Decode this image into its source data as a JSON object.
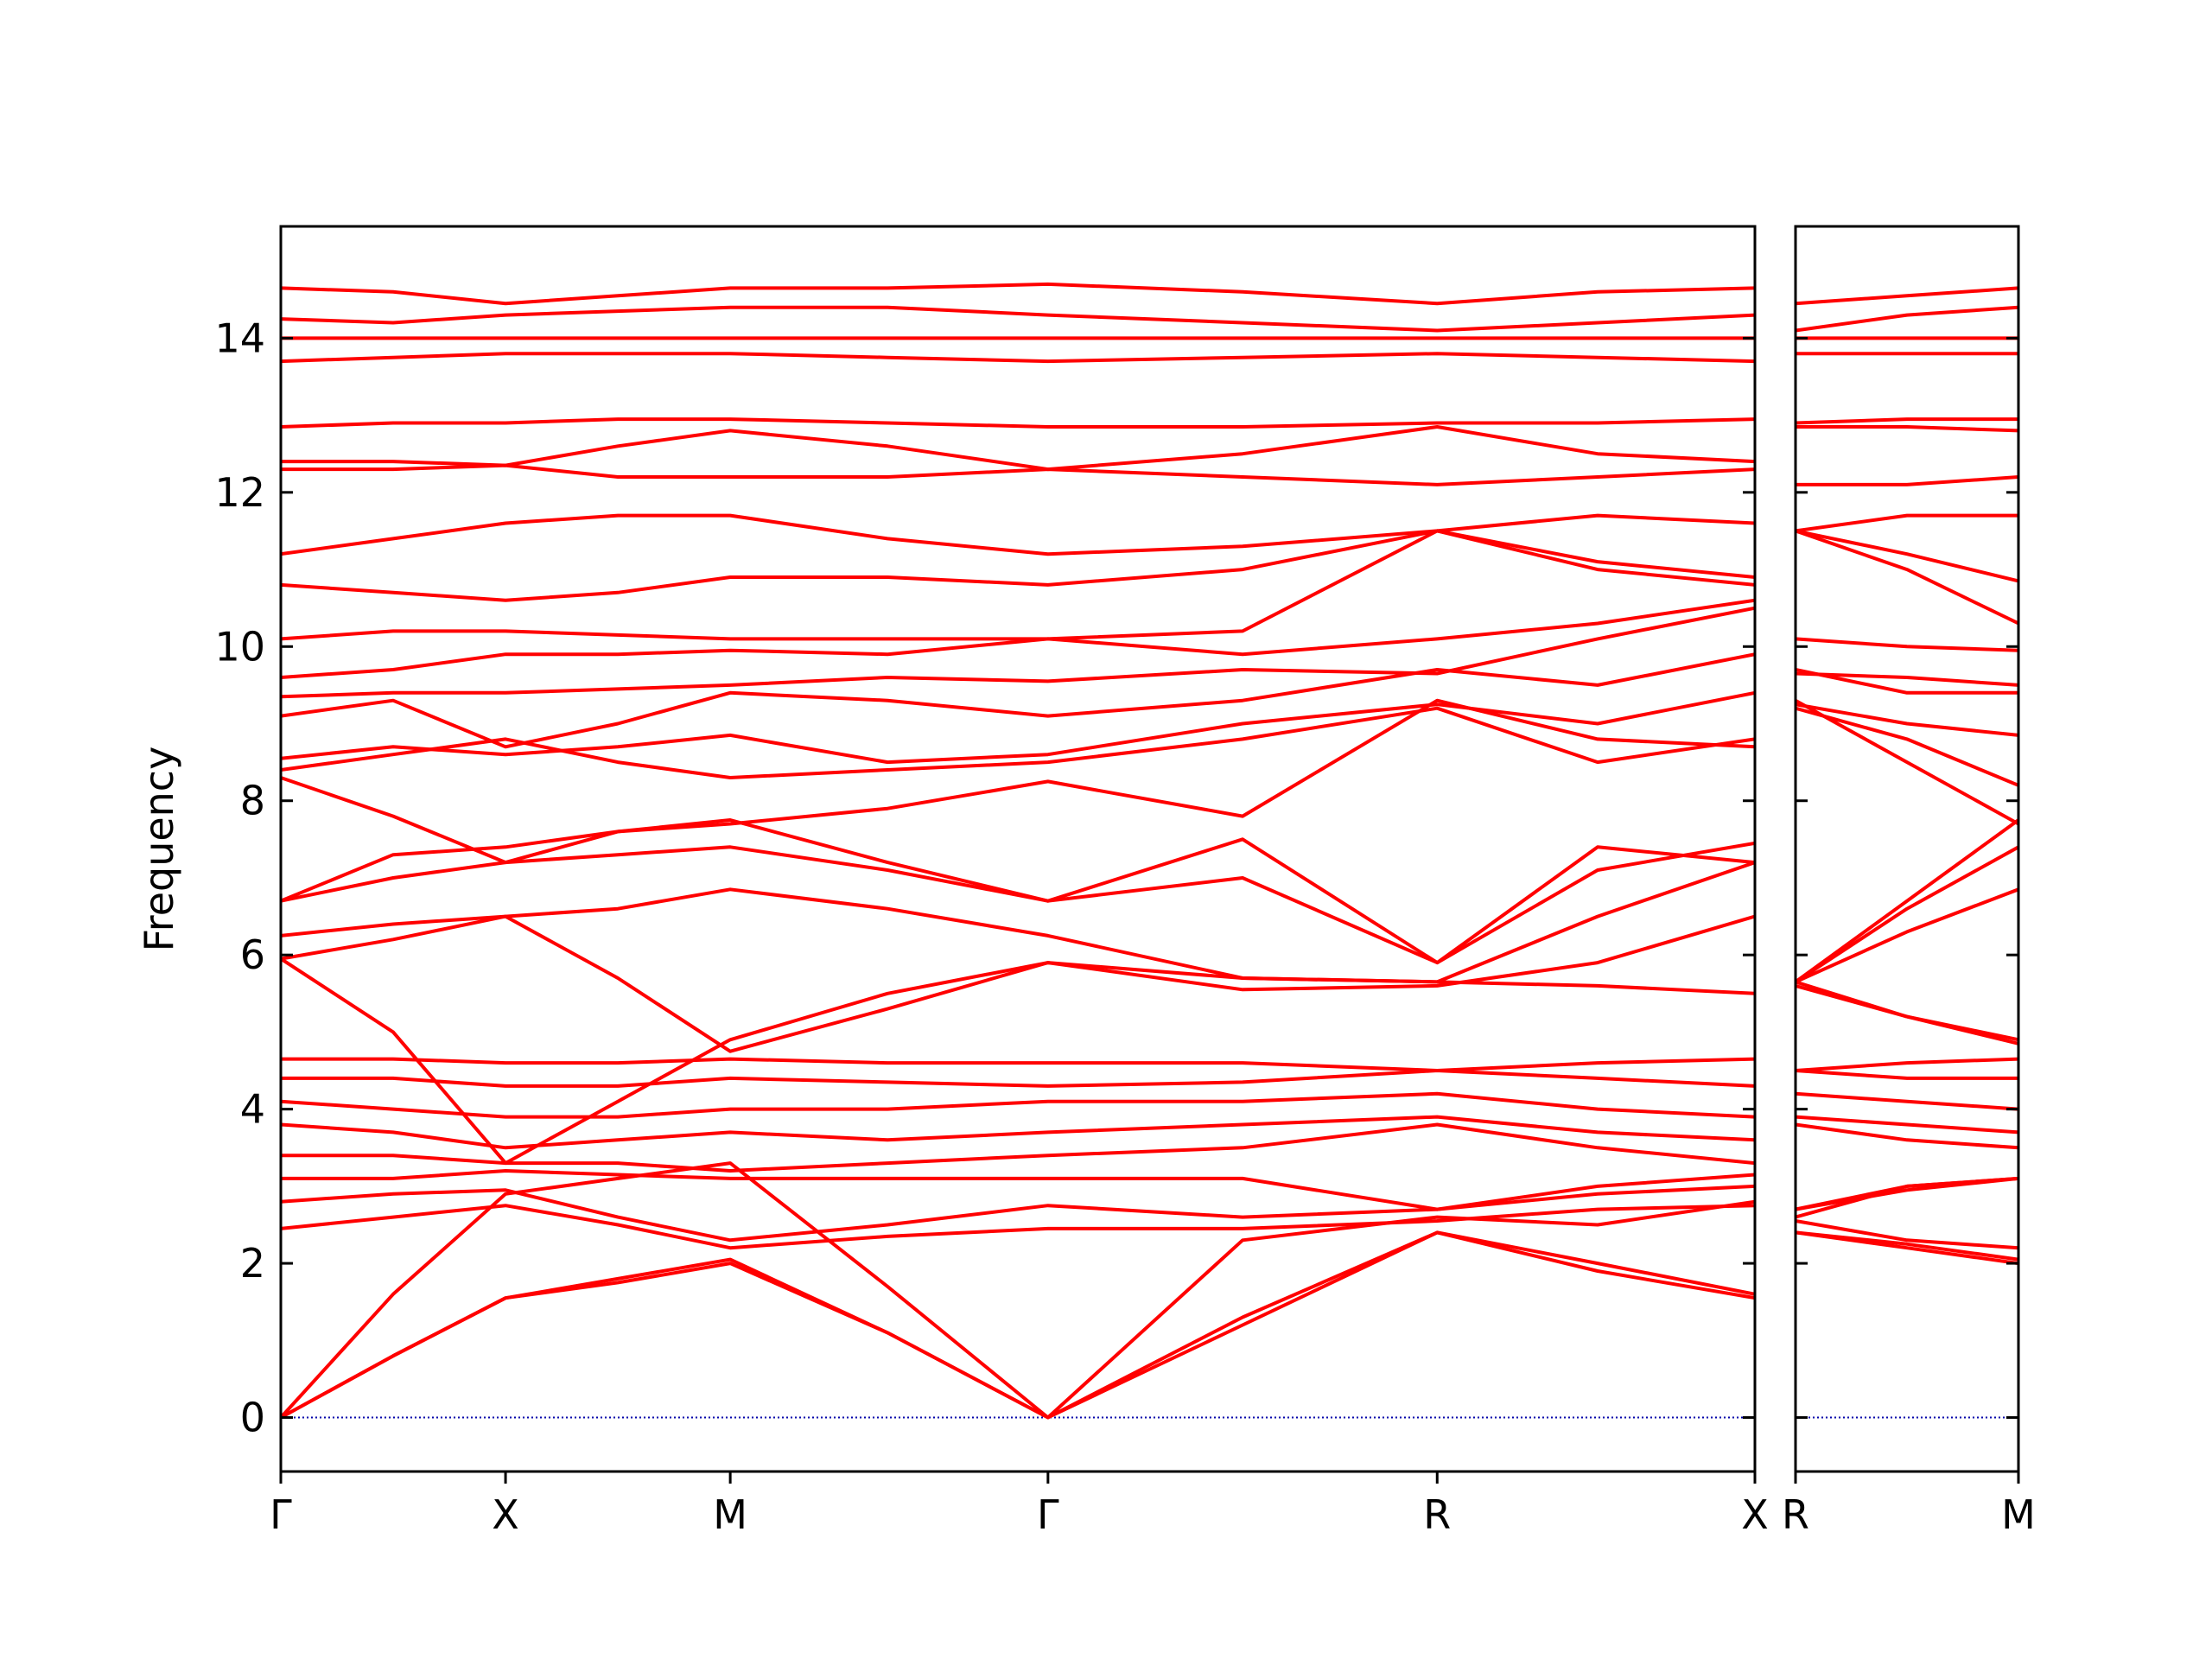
{
  "chart_data": [
    {
      "type": "line",
      "ylabel": "Frequency",
      "color": "#ff0000",
      "hline": 0,
      "hline_color": "#0000aa",
      "xlim": [
        0,
        3.28
      ],
      "ylim": [
        -0.7,
        15.45
      ],
      "xticks": [
        {
          "value": 0,
          "label": "Γ"
        },
        {
          "value": 0.5,
          "label": "X"
        },
        {
          "value": 1.0,
          "label": "M"
        },
        {
          "value": 1.707,
          "label": "Γ"
        },
        {
          "value": 2.573,
          "label": "R"
        },
        {
          "value": 3.28,
          "label": "X"
        }
      ],
      "yticks": [
        0,
        2,
        4,
        6,
        8,
        10,
        12,
        14
      ],
      "ytick_labels": true,
      "x": [
        0,
        0.25,
        0.5,
        0.75,
        1.0,
        1.35,
        1.707,
        2.14,
        2.573,
        2.93,
        3.28
      ],
      "series": [
        {
          "values": [
            0,
            0.8,
            1.55,
            1.75,
            2.0,
            1.1,
            0,
            1.2,
            2.4,
            1.9,
            1.55
          ]
        },
        {
          "values": [
            0,
            0.8,
            1.55,
            1.8,
            2.05,
            1.1,
            0,
            1.3,
            2.4,
            2.0,
            1.6
          ]
        },
        {
          "values": [
            0,
            1.6,
            2.9,
            3.1,
            3.3,
            1.7,
            0,
            2.3,
            2.6,
            2.5,
            2.8
          ]
        },
        {
          "values": [
            2.45,
            2.6,
            2.75,
            2.5,
            2.2,
            2.35,
            2.45,
            2.45,
            2.55,
            2.7,
            2.75
          ]
        },
        {
          "values": [
            2.8,
            2.9,
            2.95,
            2.6,
            2.3,
            2.5,
            2.75,
            2.6,
            2.7,
            2.9,
            3.0
          ]
        },
        {
          "values": [
            3.1,
            3.1,
            3.2,
            3.15,
            3.1,
            3.1,
            3.1,
            3.1,
            2.7,
            3.0,
            3.15
          ]
        },
        {
          "values": [
            3.4,
            3.4,
            3.3,
            3.3,
            3.2,
            3.3,
            3.4,
            3.5,
            3.8,
            3.5,
            3.3
          ]
        },
        {
          "values": [
            3.8,
            3.7,
            3.5,
            3.6,
            3.7,
            3.6,
            3.7,
            3.8,
            3.9,
            3.7,
            3.6
          ]
        },
        {
          "values": [
            4.1,
            4.0,
            3.9,
            3.9,
            4.0,
            4.0,
            4.1,
            4.1,
            4.2,
            4.0,
            3.9
          ]
        },
        {
          "values": [
            4.4,
            4.4,
            4.3,
            4.3,
            4.4,
            4.35,
            4.3,
            4.35,
            4.5,
            4.4,
            4.3
          ]
        },
        {
          "values": [
            4.65,
            4.65,
            4.6,
            4.6,
            4.65,
            4.6,
            4.6,
            4.6,
            4.5,
            4.6,
            4.65
          ]
        },
        {
          "values": [
            5.95,
            5.0,
            3.3,
            4.1,
            4.9,
            5.5,
            5.9,
            5.7,
            5.65,
            5.6,
            5.5
          ]
        },
        {
          "values": [
            5.95,
            6.2,
            6.5,
            5.7,
            4.75,
            5.3,
            5.9,
            5.55,
            5.6,
            5.9,
            6.5
          ]
        },
        {
          "values": [
            6.25,
            6.4,
            6.5,
            6.6,
            6.85,
            6.6,
            6.25,
            5.7,
            5.65,
            6.5,
            7.2
          ]
        },
        {
          "values": [
            6.7,
            7.0,
            7.2,
            7.3,
            7.4,
            7.1,
            6.7,
            7.0,
            5.9,
            7.4,
            7.2
          ]
        },
        {
          "values": [
            6.7,
            7.3,
            7.4,
            7.6,
            7.75,
            7.2,
            6.7,
            7.5,
            5.9,
            7.1,
            7.45
          ]
        },
        {
          "values": [
            8.3,
            7.8,
            7.2,
            7.6,
            7.7,
            7.9,
            8.25,
            7.8,
            9.3,
            8.8,
            8.7
          ]
        },
        {
          "values": [
            8.4,
            8.6,
            8.8,
            8.5,
            8.3,
            8.4,
            8.5,
            8.8,
            9.2,
            8.5,
            8.8
          ]
        },
        {
          "values": [
            8.55,
            8.7,
            8.6,
            8.7,
            8.85,
            8.5,
            8.6,
            9.0,
            9.25,
            9.0,
            9.4
          ]
        },
        {
          "values": [
            9.1,
            9.3,
            8.7,
            9.0,
            9.4,
            9.3,
            9.1,
            9.3,
            9.7,
            9.5,
            9.9
          ]
        },
        {
          "values": [
            9.35,
            9.4,
            9.4,
            9.45,
            9.5,
            9.6,
            9.55,
            9.7,
            9.65,
            10.1,
            10.5
          ]
        },
        {
          "values": [
            9.6,
            9.7,
            9.9,
            9.9,
            9.95,
            9.9,
            10.1,
            9.9,
            10.1,
            10.3,
            10.6
          ]
        },
        {
          "values": [
            10.1,
            10.2,
            10.2,
            10.15,
            10.1,
            10.1,
            10.1,
            10.2,
            11.5,
            11.0,
            10.8
          ]
        },
        {
          "values": [
            10.8,
            10.7,
            10.6,
            10.7,
            10.9,
            10.9,
            10.8,
            11.0,
            11.5,
            11.1,
            10.9
          ]
        },
        {
          "values": [
            11.2,
            11.4,
            11.6,
            11.7,
            11.7,
            11.4,
            11.2,
            11.3,
            11.5,
            11.7,
            11.6
          ]
        },
        {
          "values": [
            12.3,
            12.3,
            12.35,
            12.2,
            12.2,
            12.2,
            12.3,
            12.2,
            12.1,
            12.2,
            12.3
          ]
        },
        {
          "values": [
            12.4,
            12.4,
            12.35,
            12.6,
            12.8,
            12.6,
            12.3,
            12.5,
            12.85,
            12.5,
            12.4
          ]
        },
        {
          "values": [
            12.85,
            12.9,
            12.9,
            12.95,
            12.95,
            12.9,
            12.85,
            12.85,
            12.9,
            12.9,
            12.95
          ]
        },
        {
          "values": [
            13.7,
            13.75,
            13.8,
            13.8,
            13.8,
            13.75,
            13.7,
            13.75,
            13.8,
            13.75,
            13.7
          ]
        },
        {
          "values": [
            14.0,
            14.0,
            14.0,
            14.0,
            14.0,
            14.0,
            14.0,
            14.0,
            14.0,
            14.0,
            14.0
          ]
        },
        {
          "values": [
            14.25,
            14.2,
            14.3,
            14.35,
            14.4,
            14.4,
            14.3,
            14.2,
            14.1,
            14.2,
            14.3
          ]
        },
        {
          "values": [
            14.65,
            14.6,
            14.45,
            14.55,
            14.65,
            14.65,
            14.7,
            14.6,
            14.45,
            14.6,
            14.65
          ]
        }
      ]
    },
    {
      "type": "line",
      "color": "#ff0000",
      "hline": 0,
      "hline_color": "#0000aa",
      "xlim": [
        0,
        0.5
      ],
      "ylim": [
        -0.7,
        15.45
      ],
      "xticks": [
        {
          "value": 0,
          "label": "R"
        },
        {
          "value": 0.5,
          "label": "M"
        }
      ],
      "yticks": [
        0,
        2,
        4,
        6,
        8,
        10,
        12,
        14
      ],
      "ytick_labels": false,
      "x": [
        0,
        0.25,
        0.5
      ],
      "series": [
        {
          "values": [
            2.4,
            2.2,
            2.0
          ]
        },
        {
          "values": [
            2.4,
            2.25,
            2.05
          ]
        },
        {
          "values": [
            2.6,
            3.0,
            3.1
          ]
        },
        {
          "values": [
            2.55,
            2.3,
            2.2
          ]
        },
        {
          "values": [
            2.7,
            2.95,
            3.1
          ]
        },
        {
          "values": [
            2.7,
            3.0,
            3.1
          ]
        },
        {
          "values": [
            3.8,
            3.6,
            3.5
          ]
        },
        {
          "values": [
            3.9,
            3.8,
            3.7
          ]
        },
        {
          "values": [
            4.2,
            4.1,
            4.0
          ]
        },
        {
          "values": [
            4.5,
            4.4,
            4.4
          ]
        },
        {
          "values": [
            4.5,
            4.6,
            4.65
          ]
        },
        {
          "values": [
            5.65,
            5.2,
            4.9
          ]
        },
        {
          "values": [
            5.6,
            5.2,
            4.85
          ]
        },
        {
          "values": [
            5.65,
            6.3,
            6.85
          ]
        },
        {
          "values": [
            5.65,
            6.6,
            7.4
          ]
        },
        {
          "values": [
            5.65,
            6.7,
            7.75
          ]
        },
        {
          "values": [
            9.3,
            8.5,
            7.7
          ]
        },
        {
          "values": [
            9.2,
            8.8,
            8.2
          ]
        },
        {
          "values": [
            9.25,
            9.0,
            8.85
          ]
        },
        {
          "values": [
            9.7,
            9.4,
            9.4
          ]
        },
        {
          "values": [
            9.65,
            9.6,
            9.5
          ]
        },
        {
          "values": [
            10.1,
            10.0,
            9.95
          ]
        },
        {
          "values": [
            11.5,
            11.0,
            10.3
          ]
        },
        {
          "values": [
            11.5,
            11.2,
            10.85
          ]
        },
        {
          "values": [
            11.5,
            11.7,
            11.7
          ]
        },
        {
          "values": [
            12.1,
            12.1,
            12.2
          ]
        },
        {
          "values": [
            12.85,
            12.85,
            12.8
          ]
        },
        {
          "values": [
            12.9,
            12.95,
            12.95
          ]
        },
        {
          "values": [
            13.8,
            13.8,
            13.8
          ]
        },
        {
          "values": [
            14.0,
            14.0,
            14.0
          ]
        },
        {
          "values": [
            14.1,
            14.3,
            14.4
          ]
        },
        {
          "values": [
            14.45,
            14.55,
            14.65
          ]
        }
      ]
    }
  ]
}
